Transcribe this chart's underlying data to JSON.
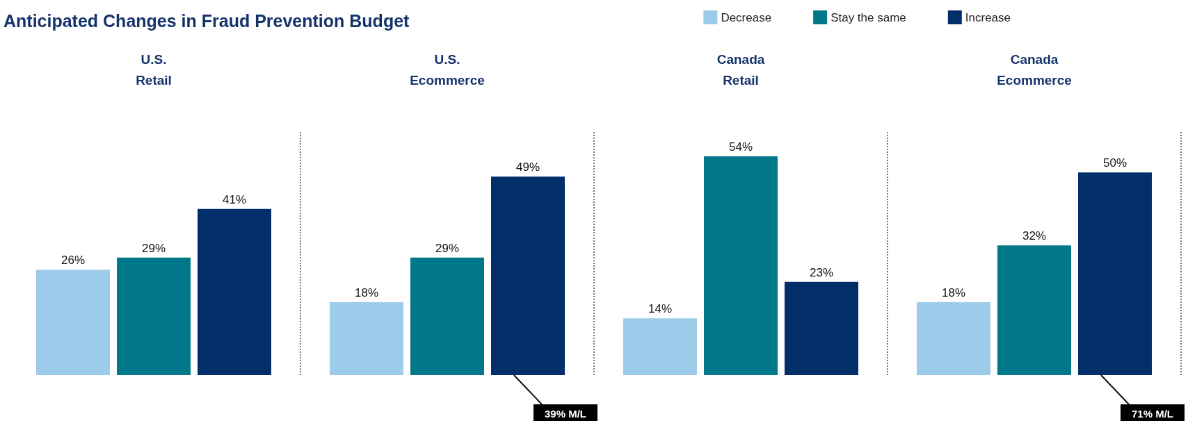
{
  "chart_data": {
    "type": "bar",
    "title": "Anticipated Changes in Fraud Prevention Budget",
    "categories": [
      "U.S.\nRetail",
      "U.S.\nEcommerce",
      "Canada\nRetail",
      "Canada\nEcommerce"
    ],
    "series": [
      {
        "name": "Decrease",
        "color": "#9dcbea",
        "values": [
          26,
          18,
          14,
          18
        ],
        "value_labels": [
          "26%",
          "18%",
          "14%",
          "18%"
        ]
      },
      {
        "name": "Stay the same",
        "color": "#00788a",
        "values": [
          29,
          29,
          54,
          32
        ],
        "value_labels": [
          "29%",
          "29%",
          "54%",
          "32%"
        ]
      },
      {
        "name": "Increase",
        "color": "#022e69",
        "values": [
          41,
          49,
          23,
          50
        ],
        "value_labels": [
          "41%",
          "49%",
          "23%",
          "50%"
        ]
      }
    ],
    "legend": "top right",
    "annotations": [
      "39% M/L",
      "71% M/L"
    ]
  }
}
